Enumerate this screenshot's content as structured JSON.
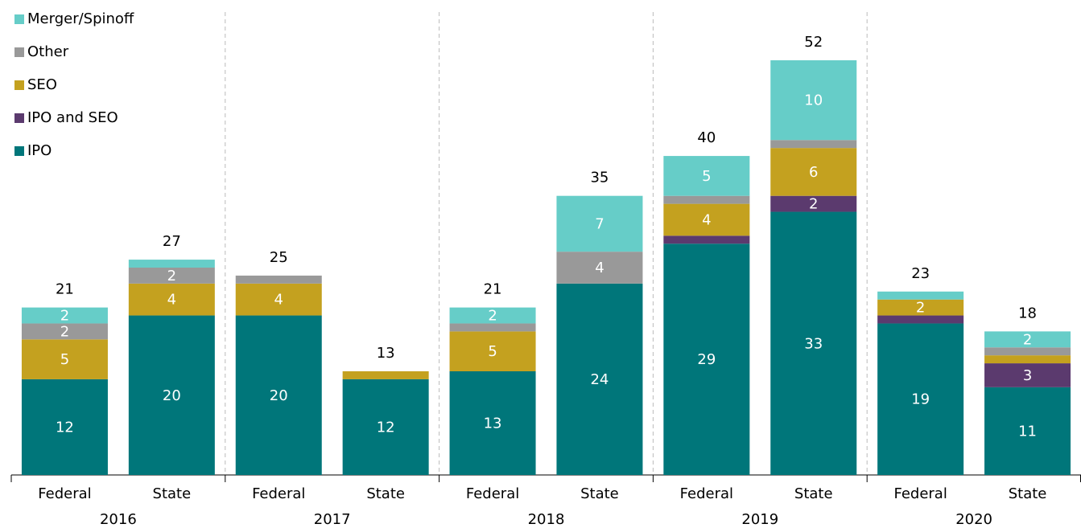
{
  "chart_data": {
    "type": "stacked_bar",
    "categories": [
      "Federal",
      "State",
      "Federal",
      "State",
      "Federal",
      "State",
      "Federal",
      "State",
      "Federal",
      "State"
    ],
    "groups": [
      "2016",
      "2017",
      "2018",
      "2019",
      "2020"
    ],
    "series": [
      {
        "name": "IPO",
        "color": "#00767a",
        "values": [
          12,
          20,
          20,
          12,
          13,
          24,
          29,
          33,
          19,
          11
        ],
        "value_labels": [
          "12",
          "20",
          "20",
          "12",
          "13",
          "24",
          "29",
          "33",
          "19",
          "11"
        ]
      },
      {
        "name": "IPO and SEO",
        "color": "#5b3a6e",
        "values": [
          0,
          0,
          0,
          0,
          0,
          0,
          1,
          2,
          1,
          3
        ],
        "value_labels": [
          null,
          null,
          null,
          null,
          null,
          null,
          null,
          "2",
          null,
          "3"
        ]
      },
      {
        "name": "SEO",
        "color": "#c4a11f",
        "values": [
          5,
          4,
          4,
          1,
          5,
          0,
          4,
          6,
          2,
          1
        ],
        "value_labels": [
          "5",
          "4",
          "4",
          null,
          "5",
          null,
          "4",
          "6",
          "2",
          null
        ]
      },
      {
        "name": "Other",
        "color": "#999999",
        "values": [
          2,
          2,
          1,
          0,
          1,
          4,
          1,
          1,
          0,
          1
        ],
        "value_labels": [
          "2",
          "2",
          null,
          null,
          null,
          "4",
          null,
          null,
          null,
          null
        ]
      },
      {
        "name": "Merger/Spinoff",
        "color": "#66cdc8",
        "values": [
          2,
          1,
          0,
          0,
          2,
          7,
          5,
          10,
          1,
          2
        ],
        "value_labels": [
          "2",
          null,
          null,
          null,
          "2",
          "7",
          "5",
          "10",
          null,
          "2"
        ]
      }
    ],
    "totals": [
      21,
      27,
      25,
      13,
      21,
      35,
      40,
      52,
      23,
      18
    ],
    "legend": "top-left"
  }
}
